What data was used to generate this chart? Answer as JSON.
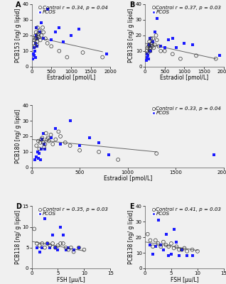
{
  "panels": [
    {
      "label": "A",
      "ylabel": "PCB153 [ng/ g lipid]",
      "xlabel": "Estradiol [pmol/L]",
      "xlim": [
        0,
        2000
      ],
      "ylim": [
        0,
        40
      ],
      "xticks": [
        0,
        500,
        1000,
        1500,
        2000
      ],
      "yticks": [
        0,
        10,
        20,
        30,
        40
      ],
      "legend_text": "Control r = 0.34, p = 0.04",
      "trendline": [
        0,
        1800,
        19.5,
        9.5
      ],
      "control_x": [
        50,
        70,
        80,
        90,
        100,
        110,
        120,
        130,
        140,
        150,
        160,
        170,
        180,
        200,
        220,
        250,
        280,
        300,
        350,
        400,
        500,
        700,
        900,
        1300,
        1800
      ],
      "control_y": [
        15,
        17,
        13,
        18,
        20,
        22,
        18,
        14,
        16,
        25,
        20,
        21,
        19,
        23,
        17,
        20,
        25,
        22,
        18,
        15,
        13,
        10,
        6,
        9,
        6
      ],
      "pcos_x": [
        30,
        50,
        60,
        70,
        80,
        90,
        100,
        110,
        120,
        130,
        140,
        200,
        250,
        300,
        400,
        500,
        600,
        700,
        800,
        1000,
        1200,
        1900
      ],
      "pcos_y": [
        5,
        8,
        12,
        7,
        10,
        6,
        15,
        20,
        25,
        18,
        13,
        22,
        28,
        18,
        37,
        17,
        22,
        25,
        16,
        20,
        24,
        8
      ]
    },
    {
      "label": "B",
      "ylabel": "PCB138 [ng/ g lipid]",
      "xlabel": "Estradiol [pmol/L]",
      "xlim": [
        0,
        2000
      ],
      "ylim": [
        0,
        40
      ],
      "xticks": [
        0,
        500,
        1000,
        1500,
        2000
      ],
      "yticks": [
        0,
        10,
        20,
        30,
        40
      ],
      "legend_text": "Control r = 0.37, p = 0.03",
      "trendline": [
        0,
        1800,
        15.0,
        5.0
      ],
      "control_x": [
        50,
        70,
        80,
        90,
        100,
        110,
        120,
        130,
        140,
        150,
        160,
        170,
        180,
        200,
        220,
        250,
        280,
        300,
        350,
        400,
        500,
        700,
        900,
        1300,
        1800
      ],
      "control_y": [
        10,
        12,
        9,
        13,
        14,
        16,
        12,
        10,
        12,
        18,
        14,
        15,
        13,
        18,
        12,
        14,
        20,
        17,
        13,
        10,
        10,
        8,
        5,
        7,
        5
      ],
      "pcos_x": [
        30,
        50,
        60,
        70,
        80,
        90,
        100,
        110,
        120,
        130,
        140,
        200,
        250,
        300,
        400,
        500,
        600,
        700,
        800,
        1000,
        1200,
        1900
      ],
      "pcos_y": [
        4,
        6,
        8,
        5,
        7,
        5,
        10,
        14,
        18,
        13,
        10,
        16,
        22,
        31,
        13,
        12,
        17,
        18,
        12,
        15,
        14,
        7
      ]
    },
    {
      "label": "C",
      "ylabel": "PCB180 [ng/ g lipid]",
      "xlabel": "Estradiol [pmol/L]",
      "xlim": [
        0,
        2000
      ],
      "ylim": [
        0,
        40
      ],
      "xticks": [
        0,
        500,
        1000,
        1500,
        2000
      ],
      "yticks": [
        0,
        10,
        20,
        30,
        40
      ],
      "legend_text": "Control r = 0.33, p = 0.04",
      "trendline": [
        0,
        1300,
        18.0,
        10.0
      ],
      "control_x": [
        50,
        70,
        80,
        90,
        100,
        110,
        120,
        130,
        140,
        150,
        160,
        170,
        180,
        200,
        220,
        250,
        280,
        300,
        350,
        400,
        500,
        700,
        900,
        1300
      ],
      "control_y": [
        14,
        17,
        12,
        16,
        18,
        19,
        16,
        13,
        15,
        22,
        18,
        19,
        17,
        21,
        15,
        18,
        23,
        20,
        16,
        14,
        11,
        10,
        5,
        9
      ],
      "pcos_x": [
        30,
        50,
        60,
        70,
        80,
        90,
        100,
        110,
        120,
        130,
        140,
        200,
        250,
        300,
        400,
        500,
        600,
        700,
        800,
        1900
      ],
      "pcos_y": [
        5,
        7,
        10,
        6,
        9,
        5,
        12,
        18,
        22,
        15,
        12,
        19,
        25,
        15,
        30,
        14,
        19,
        16,
        8,
        8
      ]
    },
    {
      "label": "D",
      "ylabel": "PCB118 [ng/ g lipid]",
      "xlabel": "FSH [µu/L]",
      "xlim": [
        0,
        15
      ],
      "ylim": [
        0,
        15
      ],
      "xticks": [
        0,
        5,
        10,
        15
      ],
      "yticks": [
        0,
        5,
        10,
        15
      ],
      "legend_text": "Control r = 0.35, p = 0.03",
      "trendline": [
        0,
        10,
        6.5,
        4.2
      ],
      "control_x": [
        0.5,
        1,
        1.5,
        2,
        2.5,
        3,
        3.5,
        4,
        4.5,
        5,
        5.5,
        6,
        6.5,
        7,
        7.5,
        8,
        9,
        10
      ],
      "control_y": [
        9.5,
        6,
        5.5,
        6,
        5,
        6,
        5.5,
        6,
        5,
        5.5,
        6,
        6,
        5,
        4.5,
        5,
        4,
        5,
        4.5
      ],
      "pcos_x": [
        1,
        1.5,
        2,
        2.5,
        3,
        3.5,
        4,
        4.5,
        5,
        5.5,
        6,
        6.5,
        7,
        8,
        9
      ],
      "pcos_y": [
        5,
        4,
        5,
        12,
        6,
        5,
        8,
        5,
        4.5,
        10,
        8,
        4.5,
        5,
        4.5,
        5
      ]
    },
    {
      "label": "E",
      "ylabel": "PCB138 [ng/ g lipid]",
      "xlabel": "FSH [µu/L]",
      "xlim": [
        0,
        15
      ],
      "ylim": [
        0,
        40
      ],
      "xticks": [
        0,
        5,
        10,
        15
      ],
      "yticks": [
        0,
        10,
        20,
        30,
        40
      ],
      "legend_text": "Control r = 0.41, p = 0.03",
      "trendline": [
        0,
        10,
        17.0,
        11.5
      ],
      "control_x": [
        0.5,
        1,
        1.5,
        2,
        2.5,
        3,
        3.5,
        4,
        4.5,
        5,
        5.5,
        6,
        6.5,
        7,
        7.5,
        8,
        9,
        10
      ],
      "control_y": [
        22,
        18,
        14,
        18,
        16,
        14,
        17,
        15,
        14,
        16,
        13,
        14,
        12,
        12,
        13,
        11,
        12,
        11
      ],
      "pcos_x": [
        1,
        1.5,
        2,
        2.5,
        3,
        3.5,
        4,
        4.5,
        5,
        5.5,
        6,
        6.5,
        7,
        8,
        9
      ],
      "pcos_y": [
        15,
        9,
        14,
        31,
        15,
        12,
        22,
        8,
        9,
        25,
        17,
        8,
        12,
        8,
        8
      ]
    }
  ],
  "control_marker_color": "#333333",
  "pcos_color": "#1a1aff",
  "trendline_color": "#666666",
  "bg_color": "#f0f0f0",
  "marker_size": 3.5,
  "font_size": 5.5,
  "label_font_size": 7,
  "tick_font_size": 5.0
}
